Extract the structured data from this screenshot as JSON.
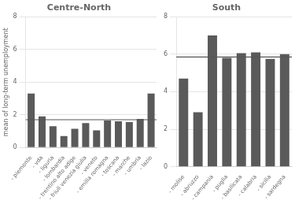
{
  "chart_data": [
    {
      "type": "bar",
      "title": "Centre-North",
      "ylabel": "mean of long-term unemployment",
      "categories": [
        "- piemonte",
        "- vda",
        "- liguria",
        "- lombardia",
        "- trentino alto adige",
        "- friuli venezia giulia",
        "- veneto",
        "- emilia romagna",
        "- toscana",
        "- marche",
        "- umbria",
        "- lazio"
      ],
      "values": [
        3.3,
        1.9,
        1.3,
        0.7,
        1.15,
        1.5,
        1.05,
        1.65,
        1.6,
        1.55,
        1.75,
        3.3
      ],
      "color": "#5a5a5a",
      "mean_line": {
        "value": 1.7,
        "color": "#555555"
      },
      "ylim": [
        0,
        8
      ],
      "yticks": [
        0,
        2,
        4,
        6,
        8
      ],
      "grid": true
    },
    {
      "type": "bar",
      "title": "South",
      "categories": [
        "- molise",
        "- abruzzo",
        "- campania",
        "- puglia",
        "- basilicata",
        "- calabria",
        "- sicilia",
        "- sardegna"
      ],
      "values": [
        4.7,
        2.9,
        7.0,
        5.8,
        6.05,
        6.1,
        5.75,
        6.0
      ],
      "color": "#5a5a5a",
      "mean_line": {
        "value": 5.85,
        "color": "#555555"
      },
      "ylim": [
        0,
        8
      ],
      "yticks": [
        0,
        2,
        4,
        6,
        8
      ],
      "grid": true
    }
  ]
}
